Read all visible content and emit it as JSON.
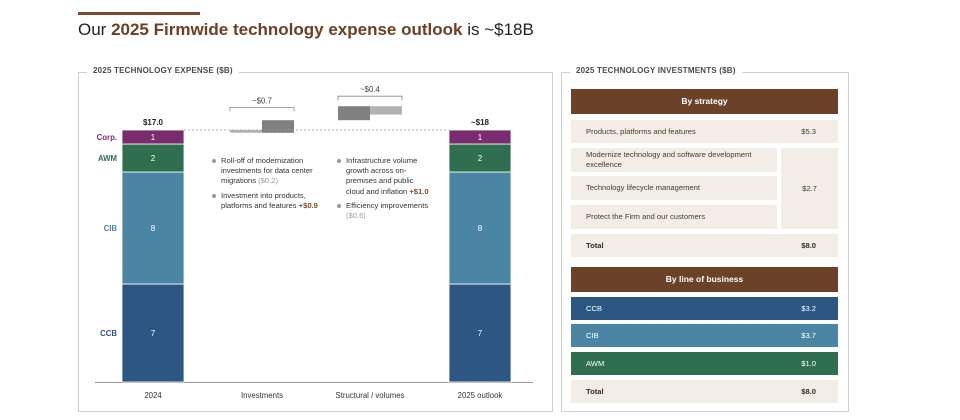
{
  "headline": {
    "prefix": "Our ",
    "bold": "2025 Firmwide technology expense outlook",
    "suffix": " is ~$18B"
  },
  "left_panel": {
    "title": "2025 TECHNOLOGY EXPENSE ($B)"
  },
  "right_panel": {
    "title": "2025 TECHNOLOGY INVESTMENTS ($B)"
  },
  "colors": {
    "corp": "#7a2d6e",
    "awm": "#2f6e4f",
    "cib": "#4a86a3",
    "ccb": "#2d5783",
    "brown": "#6b4128",
    "bridge_dark": "#808080",
    "bridge_light": "#b3b3b3"
  },
  "chart_data": {
    "type": "bar",
    "subtype": "stacked-waterfall",
    "categories": [
      "2024",
      "Investments",
      "Structural / volumes",
      "2025 outlook"
    ],
    "stack_order": [
      "CCB",
      "CIB",
      "AWM",
      "Corp."
    ],
    "bars": [
      {
        "category": "2024",
        "total_label": "$17.0",
        "segments": [
          {
            "name": "CCB",
            "value": 7,
            "label": "7"
          },
          {
            "name": "CIB",
            "value": 8,
            "label": "8"
          },
          {
            "name": "AWM",
            "value": 2,
            "label": "2"
          },
          {
            "name": "Corp.",
            "value": 1,
            "label": "1"
          }
        ]
      },
      {
        "category": "2025 outlook",
        "total_label": "~$18",
        "segments": [
          {
            "name": "CCB",
            "value": 7,
            "label": "7"
          },
          {
            "name": "CIB",
            "value": 8,
            "label": "8"
          },
          {
            "name": "AWM",
            "value": 2,
            "label": "2"
          },
          {
            "name": "Corp.",
            "value": 1,
            "label": "1"
          }
        ]
      }
    ],
    "bridges": [
      {
        "category": "Investments",
        "net_label": "~$0.7",
        "steps": [
          {
            "name": "Roll-off of modernization investments",
            "value": -0.2
          },
          {
            "name": "Investment into products, platforms and features",
            "value": 0.9
          }
        ]
      },
      {
        "category": "Structural / volumes",
        "net_label": "~$0.4",
        "steps": [
          {
            "name": "Infrastructure volume growth",
            "value": 1.0
          },
          {
            "name": "Efficiency improvements",
            "value": -0.6
          }
        ]
      }
    ],
    "segment_labels": [
      "Corp.",
      "AWM",
      "CIB",
      "CCB"
    ],
    "ylim": [
      0,
      19
    ]
  },
  "investments_bullets": [
    {
      "text": "Roll-off of modernization investments for data center migrations ",
      "amount": "($0.2)",
      "sign": "neg"
    },
    {
      "text": "Investment into products, platforms and features ",
      "amount": "+$0.9",
      "sign": "pos"
    }
  ],
  "structural_bullets": [
    {
      "text": "Infrastructure volume growth across on-premises and public cloud and inflation ",
      "amount": "+$1.0",
      "sign": "pos"
    },
    {
      "text": "Efficiency improvements ",
      "amount": "($0.6)",
      "sign": "neg"
    }
  ],
  "by_strategy": {
    "header": "By strategy",
    "rows": [
      {
        "label": "Products, platforms and features",
        "value": "$5.3"
      },
      {
        "label": "Modernize technology and software development excellence",
        "value": ""
      },
      {
        "label": "Technology lifecycle management",
        "value": "$2.7"
      },
      {
        "label": "Protect the Firm and our customers",
        "value": ""
      }
    ],
    "total_label": "Total",
    "total_value": "$8.0"
  },
  "by_lob": {
    "header": "By line of business",
    "rows": [
      {
        "label": "CCB",
        "value": "$3.2",
        "color": "#2d5783"
      },
      {
        "label": "CIB",
        "value": "$3.7",
        "color": "#4a86a3"
      },
      {
        "label": "AWM",
        "value": "$1.0",
        "color": "#2f6e4f"
      }
    ],
    "total_label": "Total",
    "total_value": "$8.0"
  }
}
